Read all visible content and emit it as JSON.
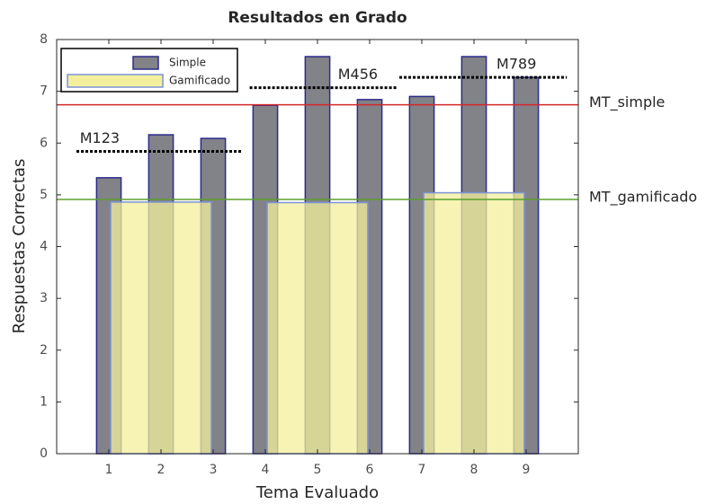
{
  "chart_data": {
    "type": "bar",
    "title": "Resultados en Grado",
    "xlabel": "Tema Evaluado",
    "ylabel": "Respuestas Correctas",
    "xlim": [
      0,
      10
    ],
    "xticks": [
      1,
      2,
      3,
      4,
      5,
      6,
      7,
      8,
      9
    ],
    "ylim": [
      0,
      8
    ],
    "yticks": [
      0,
      1,
      2,
      3,
      4,
      5,
      6,
      7,
      8
    ],
    "legend": "upper left",
    "series": [
      {
        "name": "Simple",
        "color": "#828289",
        "edgecolor": "#2b2b8a",
        "width": 0.47,
        "x": [
          1,
          2,
          3,
          4,
          5,
          6,
          7,
          8,
          9
        ],
        "values": [
          5.33,
          6.16,
          6.09,
          6.73,
          7.67,
          6.84,
          6.9,
          7.67,
          7.27
        ]
      },
      {
        "name": "Gamificado",
        "color": "#f3ef9c",
        "opacity": 0.75,
        "edgecolor": "#7b93d6",
        "width": 1.93,
        "x": [
          2,
          5,
          8
        ],
        "values": [
          4.86,
          4.85,
          5.04
        ]
      }
    ],
    "reference_lines": [
      {
        "label": "MT_simple",
        "value": 6.74,
        "color": "#d62728"
      },
      {
        "label": "MT_gamificado",
        "value": 4.91,
        "color": "#5aa02c"
      }
    ],
    "segments": [
      {
        "label": "M123",
        "value": 5.84,
        "x": [
          0.38,
          3.55
        ]
      },
      {
        "label": "M456",
        "value": 7.07,
        "x": [
          3.7,
          6.52
        ]
      },
      {
        "label": "M789",
        "value": 7.27,
        "x": [
          6.57,
          9.78
        ]
      }
    ]
  }
}
